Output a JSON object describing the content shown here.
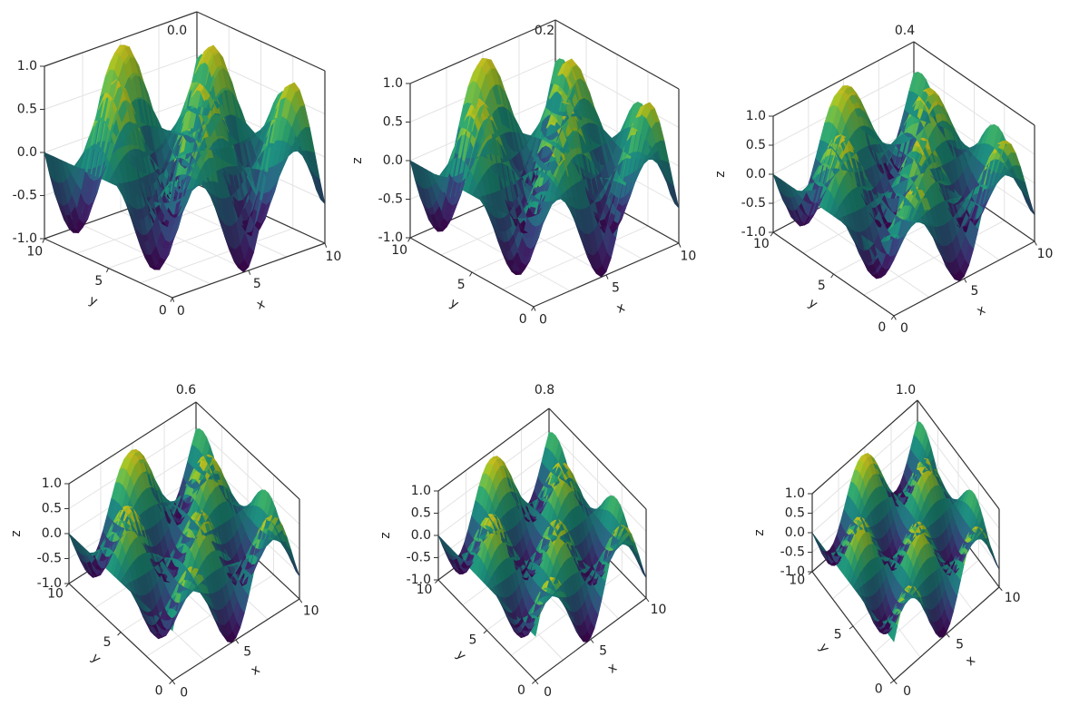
{
  "chart_data": [
    {
      "type": "surface",
      "title": "0.0",
      "xlabel": "x",
      "ylabel": "y",
      "zlabel": "",
      "xticks": [
        "0",
        "5",
        "10"
      ],
      "yticks": [
        "0",
        "5",
        "10"
      ],
      "zticks": [
        "-1.0",
        "-0.5",
        "0.0",
        "0.5",
        "1.0"
      ],
      "xlim": [
        0,
        10
      ],
      "ylim": [
        0,
        10
      ],
      "zlim": [
        -1,
        1
      ],
      "function": "z = sin(x) * cos(y)",
      "colormap": "viridis",
      "grid": true,
      "elevation_param": 0.0
    },
    {
      "type": "surface",
      "title": "0.2",
      "xlabel": "x",
      "ylabel": "y",
      "zlabel": "z",
      "xticks": [
        "0",
        "5",
        "10"
      ],
      "yticks": [
        "0",
        "5",
        "10"
      ],
      "zticks": [
        "-1.0",
        "-0.5",
        "0.0",
        "0.5",
        "1.0"
      ],
      "xlim": [
        0,
        10
      ],
      "ylim": [
        0,
        10
      ],
      "zlim": [
        -1,
        1
      ],
      "function": "z = sin(x) * cos(y)",
      "colormap": "viridis",
      "grid": true,
      "elevation_param": 0.2
    },
    {
      "type": "surface",
      "title": "0.4",
      "xlabel": "x",
      "ylabel": "y",
      "zlabel": "z",
      "xticks": [
        "0",
        "5",
        "10"
      ],
      "yticks": [
        "0",
        "5",
        "10"
      ],
      "zticks": [
        "-1.0",
        "-0.5",
        "0.0",
        "0.5",
        "1.0"
      ],
      "xlim": [
        0,
        10
      ],
      "ylim": [
        0,
        10
      ],
      "zlim": [
        -1,
        1
      ],
      "function": "z = sin(x) * cos(y)",
      "colormap": "viridis",
      "grid": true,
      "elevation_param": 0.4
    },
    {
      "type": "surface",
      "title": "0.6",
      "xlabel": "x",
      "ylabel": "y",
      "zlabel": "z",
      "xticks": [
        "0",
        "5",
        "10"
      ],
      "yticks": [
        "0",
        "5",
        "10"
      ],
      "zticks": [
        "-1.0",
        "-0.5",
        "0.0",
        "0.5",
        "1.0"
      ],
      "xlim": [
        0,
        10
      ],
      "ylim": [
        0,
        10
      ],
      "zlim": [
        -1,
        1
      ],
      "function": "z = sin(x) * cos(y)",
      "colormap": "viridis",
      "grid": true,
      "elevation_param": 0.6
    },
    {
      "type": "surface",
      "title": "0.8",
      "xlabel": "x",
      "ylabel": "y",
      "zlabel": "z",
      "xticks": [
        "0",
        "5",
        "10"
      ],
      "yticks": [
        "0",
        "5",
        "10"
      ],
      "zticks": [
        "-1.0",
        "-0.5",
        "0.0",
        "0.5",
        "1.0"
      ],
      "xlim": [
        0,
        10
      ],
      "ylim": [
        0,
        10
      ],
      "zlim": [
        -1,
        1
      ],
      "function": "z = sin(x) * cos(y)",
      "colormap": "viridis",
      "grid": true,
      "elevation_param": 0.8
    },
    {
      "type": "surface",
      "title": "1.0",
      "xlabel": "x",
      "ylabel": "y",
      "zlabel": "z",
      "xticks": [
        "0",
        "5",
        "10"
      ],
      "yticks": [
        "0",
        "5",
        "10"
      ],
      "zticks": [
        "-1.0",
        "-0.5",
        "0.0",
        "0.5",
        "1.0"
      ],
      "xlim": [
        0,
        10
      ],
      "ylim": [
        0,
        10
      ],
      "zlim": [
        -1,
        1
      ],
      "function": "z = sin(x) * cos(y)",
      "colormap": "viridis",
      "grid": true,
      "elevation_param": 1.0
    }
  ]
}
